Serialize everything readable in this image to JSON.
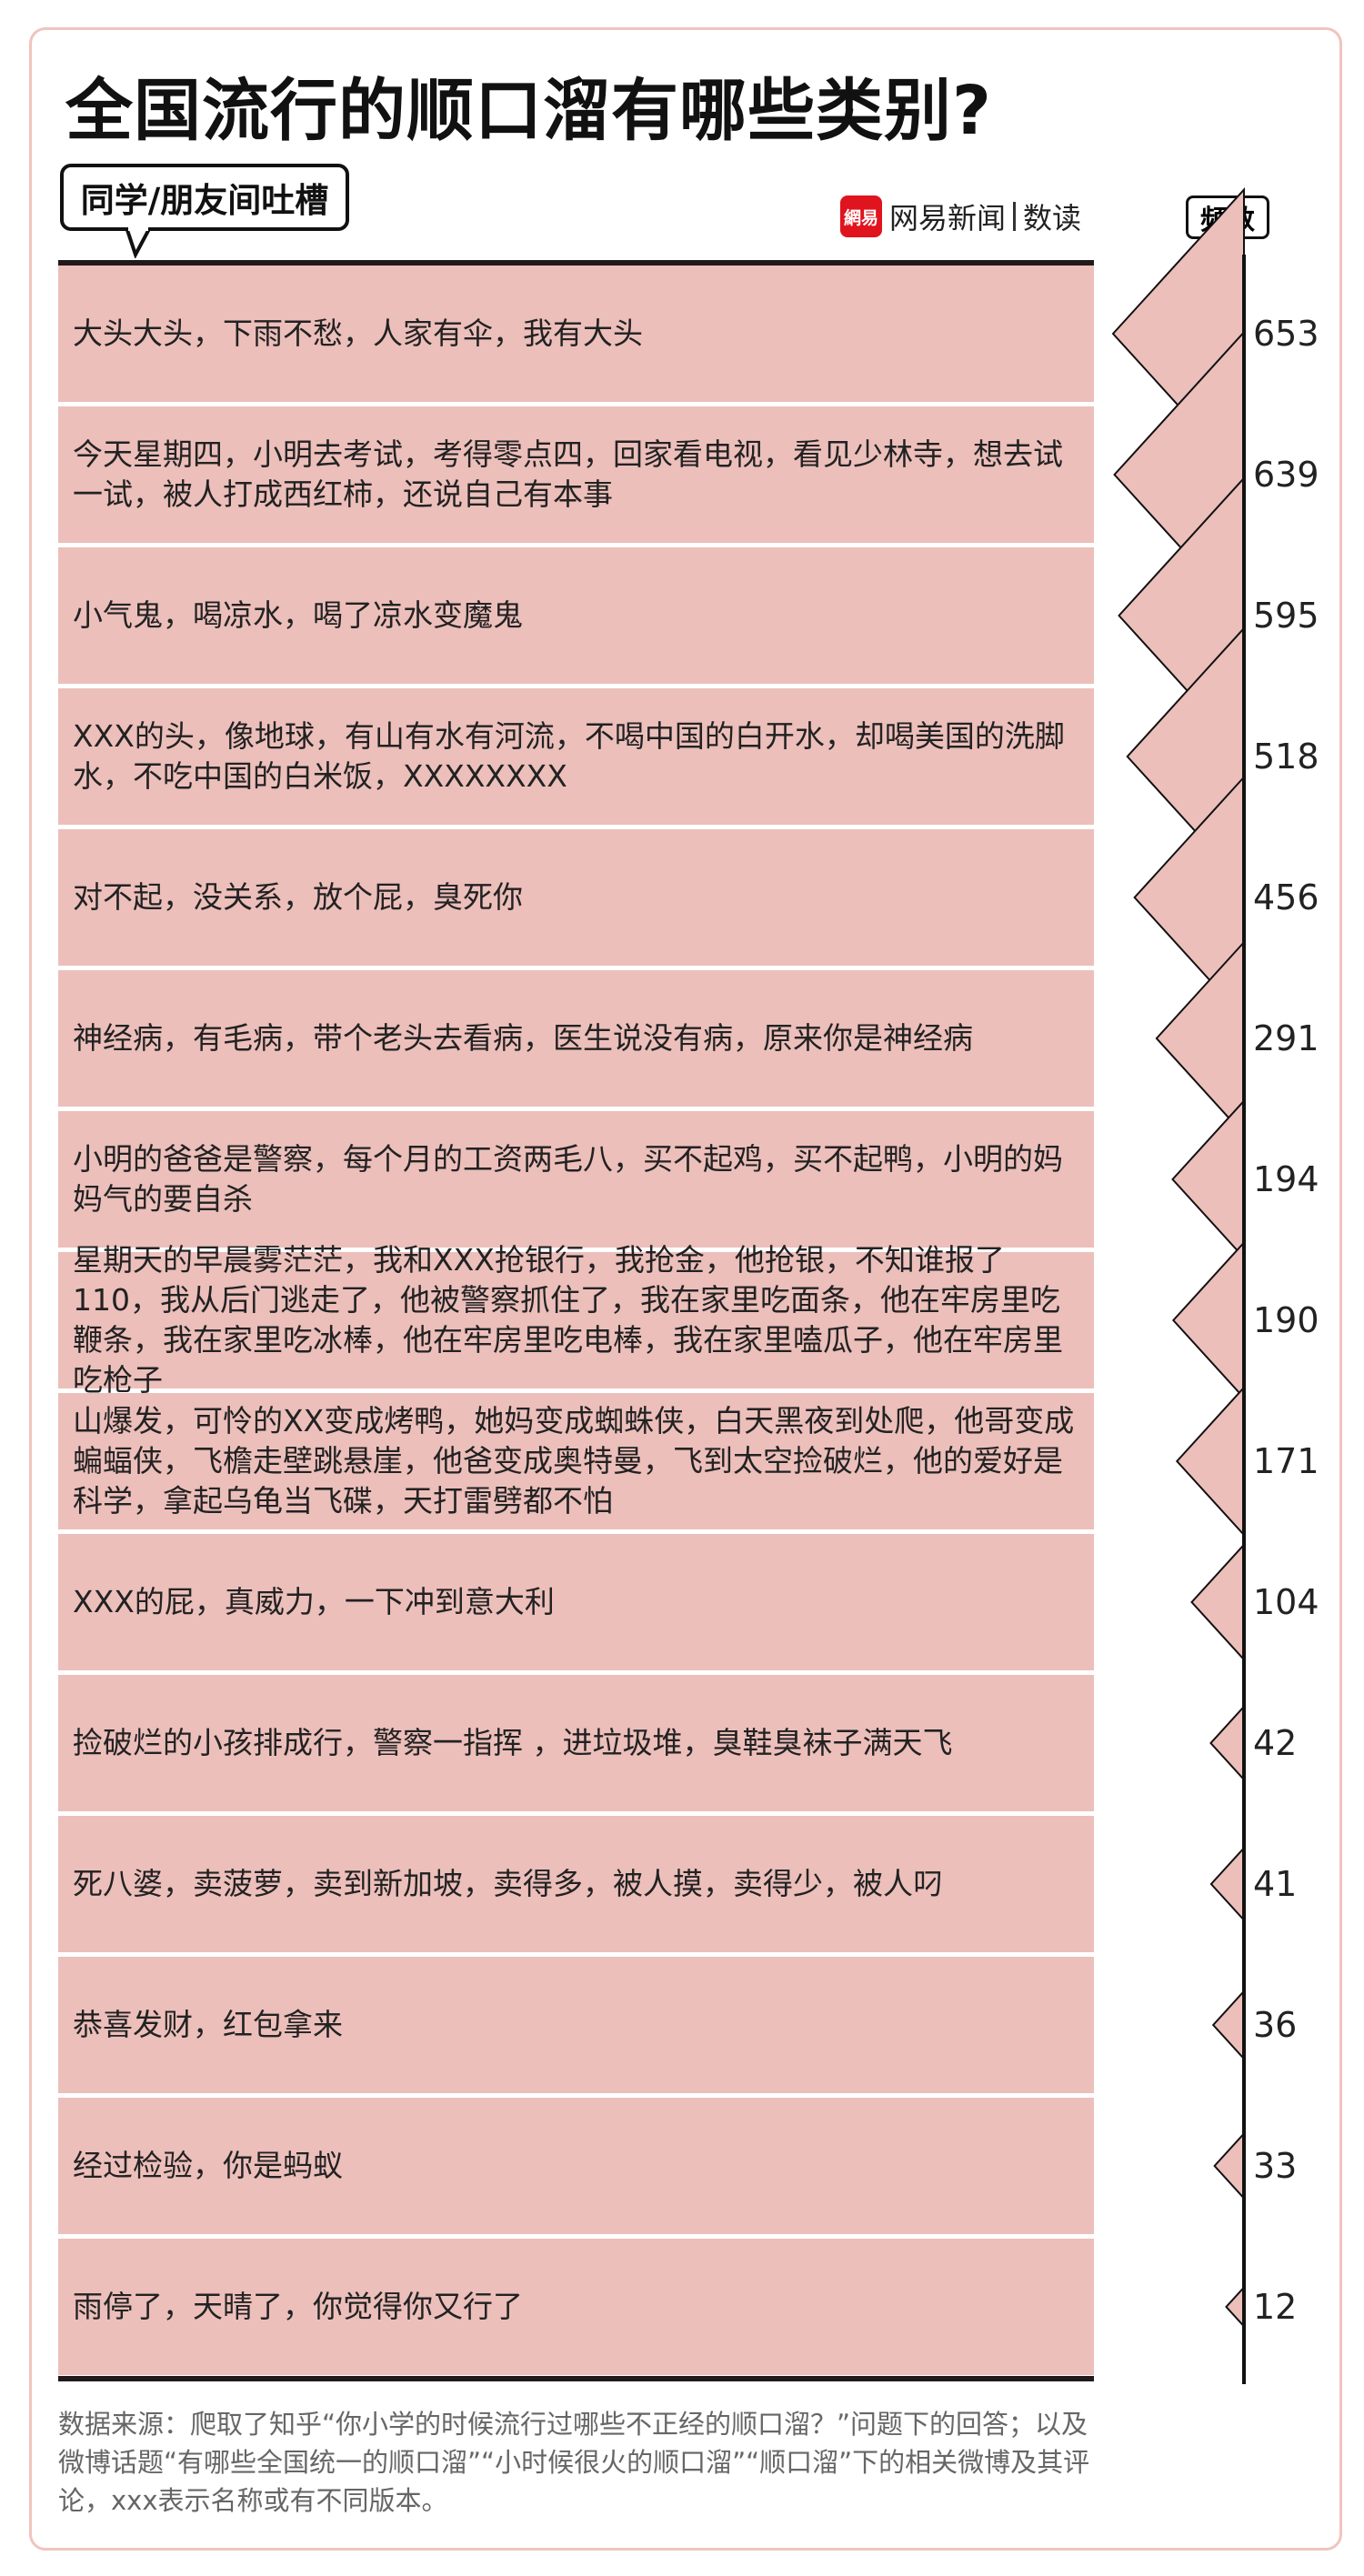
{
  "title": "全国流行的顺口溜有哪些类别?",
  "category_label": "同学/朋友间吐槽",
  "logo": {
    "mark": "網易",
    "text": "网易新闻",
    "sub": "数读",
    "brand_color": "#e0141e"
  },
  "freq_header": "频数",
  "colors": {
    "row_fill": "#ecbfbb",
    "triangle_fill": "#ecbfbb",
    "line": "#221a1a"
  },
  "chart_data": {
    "type": "bar",
    "mark": "triangle",
    "categories": [
      "大头大头，下雨不愁，人家有伞，我有大头",
      "今天星期四，小明去考试，考得零点四，回家看电视，看见少林寺，想去试一试，被人打成西红柿，还说自己有本事",
      "小气鬼，喝凉水，喝了凉水变魔鬼",
      "XXX的头，像地球，有山有水有河流，不喝中国的白开水，却喝美国的洗脚水，不吃中国的白米饭，XXXXXXXX",
      "对不起，没关系，放个屁，臭死你",
      "神经病，有毛病，带个老头去看病，医生说没有病，原来你是神经病",
      "小明的爸爸是警察，每个月的工资两毛八，买不起鸡，买不起鸭，小明的妈妈气的要自杀",
      "星期天的早晨雾茫茫，我和XXX抢银行，我抢金，他抢银，不知谁报了110，我从后门逃走了，他被警察抓住了，我在家里吃面条，他在牢房里吃鞭条，我在家里吃冰棒，他在牢房里吃电棒，我在家里嗑瓜子，他在牢房里吃枪子",
      "山爆发，可怜的XX变成烤鸭，她妈变成蜘蛛侠，白天黑夜到处爬，他哥变成蝙蝠侠，飞檐走壁跳悬崖，他爸变成奥特曼，飞到太空捡破烂，他的爱好是科学，拿起乌龟当飞碟，天打雷劈都不怕",
      "XXX的屁，真威力，一下冲到意大利",
      "捡破烂的小孩排成行，警察一指挥 ，进垃圾堆，臭鞋臭袜子满天飞",
      "死八婆，卖菠萝，卖到新加坡，卖得多，被人摸，卖得少，被人叼",
      "恭喜发财，红包拿来",
      "经过检验，你是蚂蚁",
      "雨停了，天晴了，你觉得你又行了"
    ],
    "values": [
      653,
      639,
      595,
      518,
      456,
      291,
      194,
      190,
      171,
      104,
      42,
      41,
      36,
      33,
      12
    ],
    "ylabel": "频数"
  },
  "note": "数据来源：爬取了知乎“你小学的时候流行过哪些不正经的顺口溜？”问题下的回答；以及微博话题“有哪些全国统一的顺口溜”“小时候很火的顺口溜”“顺口溜”下的相关微博及其评论，xxx表示名称或有不同版本。"
}
